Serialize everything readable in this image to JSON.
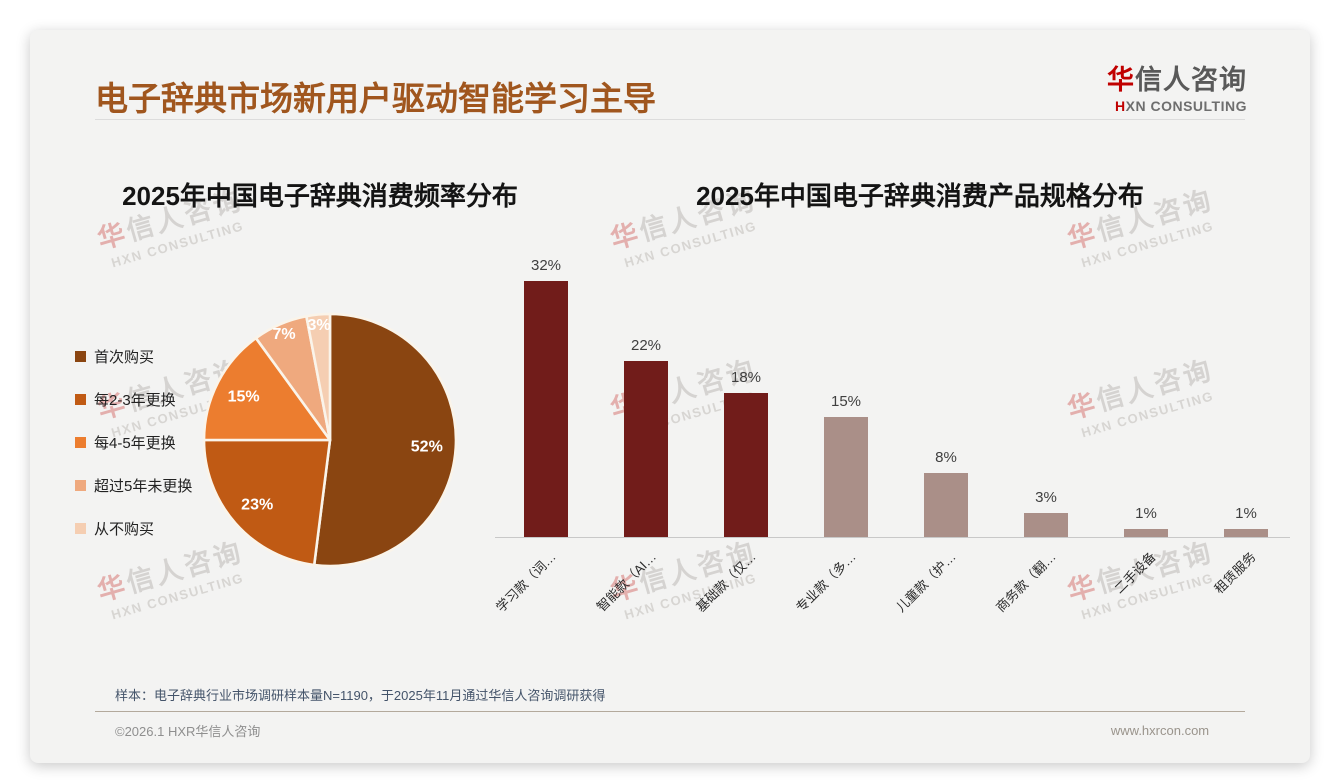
{
  "page": {
    "title": "电子辞典市场新用户驱动智能学习主导",
    "logo": {
      "cn_first": "华",
      "cn_rest": "信人咨询",
      "en_first": "H",
      "en_rest": "XN CONSULTING"
    },
    "watermark": {
      "line1": "华信人咨询",
      "line2": "HXN CONSULTING"
    },
    "footnote": "样本：电子辞典行业市场调研样本量N=1190，于2025年11月通过华信人咨询调研获得",
    "copyright": "©2026.1 HXR华信人咨询",
    "website": "www.hxrcon.com"
  },
  "colors": {
    "page_title": "#A0561E",
    "logo_red": "#C00000",
    "card_background": "#f3f3f2",
    "bar_dark_red": "#711C1A",
    "bar_taupe": "#AA8F88",
    "pie_stroke": "#FAF4EA"
  },
  "chart_data": [
    {
      "type": "pie",
      "title": "2025年中国电子辞典消费频率分布",
      "labels": [
        "首次购买",
        "每2-3年更换",
        "每4-5年更换",
        "超过5年未更换",
        "从不购买"
      ],
      "values": [
        52,
        23,
        15,
        7,
        3
      ],
      "value_labels": [
        "52%",
        "23%",
        "15%",
        "7%",
        "3%"
      ],
      "colors": [
        "#8A4511",
        "#C05A14",
        "#EC7D2F",
        "#EFA97E",
        "#F5CEB2"
      ],
      "legend_position": "left",
      "start_angle": "12-oclock-clockwise"
    },
    {
      "type": "bar",
      "title": "2025年中国电子辞典消费产品规格分布",
      "categories": [
        "学习款（词…",
        "智能款（AI…",
        "基础款（仅…",
        "专业款（多…",
        "儿童款（护…",
        "商务款（翻…",
        "二手设备",
        "租赁服务"
      ],
      "values": [
        32,
        22,
        18,
        15,
        8,
        3,
        1,
        1
      ],
      "value_labels": [
        "32%",
        "22%",
        "18%",
        "15%",
        "8%",
        "3%",
        "1%",
        "1%"
      ],
      "bar_colors": [
        "#711C1A",
        "#711C1A",
        "#711C1A",
        "#AA8F88",
        "#AA8F88",
        "#AA8F88",
        "#AA8F88",
        "#AA8F88"
      ],
      "ylim": [
        0,
        35
      ],
      "grid": false,
      "xlabel": "",
      "ylabel": ""
    }
  ]
}
